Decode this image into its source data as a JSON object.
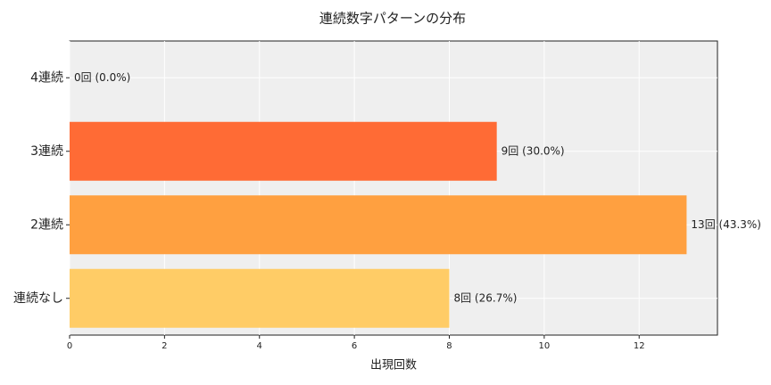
{
  "chart_data": {
    "type": "hbar",
    "title": "連続数字パターンの分布",
    "x_label": "出現回数",
    "categories": [
      "4連続",
      "3連続",
      "2連続",
      "連続なし"
    ],
    "values": [
      0,
      9,
      13,
      8
    ],
    "value_labels": [
      "0回 (0.0%)",
      "9回 (30.0%)",
      "13回 (43.3%)",
      "8回 (26.7%)"
    ],
    "colors": [
      "#ff4444",
      "#ff6b35",
      "#ffa040",
      "#ffcc66"
    ],
    "xlim": [
      0,
      13.65
    ],
    "xticks": [
      0,
      2,
      4,
      6,
      8,
      10,
      12
    ],
    "grid": true
  }
}
